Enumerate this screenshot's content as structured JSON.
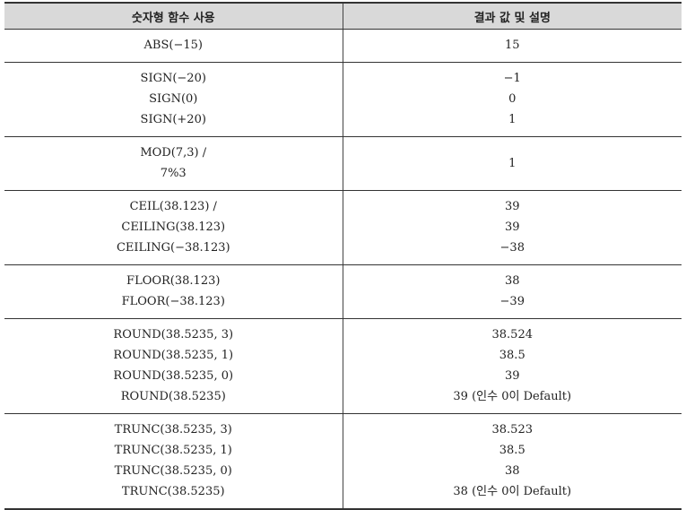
{
  "header": {
    "col1": "숫자형 함수 사용",
    "col2": "결과 값 및 설명"
  },
  "rows": [
    {
      "functions": [
        "ABS(−15)"
      ],
      "results": [
        "15"
      ]
    },
    {
      "functions": [
        "SIGN(−20)",
        "SIGN(0)",
        "SIGN(+20)"
      ],
      "results": [
        "−1",
        "0",
        "1"
      ]
    },
    {
      "functions": [
        "MOD(7,3) /",
        "7%3"
      ],
      "results": [
        "1"
      ]
    },
    {
      "functions": [
        "CEIL(38.123) /",
        "CEILING(38.123)",
        "CEILING(−38.123)"
      ],
      "results": [
        "39",
        "39",
        "−38"
      ]
    },
    {
      "functions": [
        "FLOOR(38.123)",
        "FLOOR(−38.123)"
      ],
      "results": [
        "38",
        "−39"
      ]
    },
    {
      "functions": [
        "ROUND(38.5235, 3)",
        "ROUND(38.5235, 1)",
        "ROUND(38.5235, 0)",
        "ROUND(38.5235)"
      ],
      "results": [
        "38.524",
        "38.5",
        "39",
        "39 (인수 0이 Default)"
      ]
    },
    {
      "functions": [
        "TRUNC(38.5235, 3)",
        "TRUNC(38.5235, 1)",
        "TRUNC(38.5235, 0)",
        "TRUNC(38.5235)"
      ],
      "results": [
        "38.523",
        "38.5",
        "38",
        "38 (인수 0이 Default)"
      ]
    }
  ]
}
